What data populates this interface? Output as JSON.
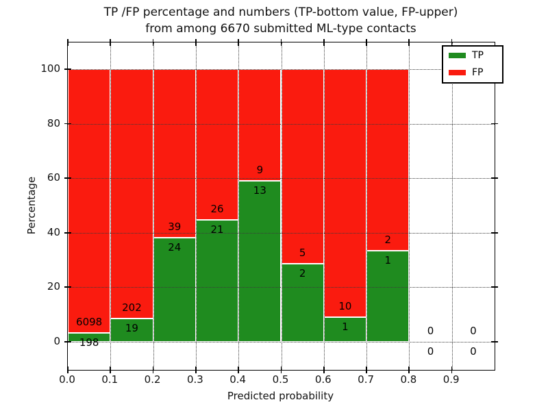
{
  "figure": {
    "title_line1": "TP /FP percentage and numbers (TP-bottom value, FP-upper)",
    "title_line2": "from among 6670 submitted ML-type contacts",
    "xlabel": "Predicted probability",
    "ylabel": "Percentage"
  },
  "legend": {
    "items": [
      {
        "label": "TP",
        "color": "#1f8b1f"
      },
      {
        "label": "FP",
        "color": "#fa1b0f"
      }
    ]
  },
  "colors": {
    "tp_green": "#1f8b1f",
    "fp_red": "#fa1b0f",
    "bar_edge": "#ffffff",
    "grid": "#3a3a3a",
    "axis": "#000000"
  },
  "chart_data": {
    "type": "bar",
    "stacked": true,
    "orientation": "vertical",
    "title": "TP /FP percentage and numbers (TP-bottom value, FP-upper) from among 6670 submitted ML-type contacts",
    "xlabel": "Predicted probability",
    "ylabel": "Percentage",
    "xlim": [
      0.0,
      1.0
    ],
    "ylim": [
      -10,
      110
    ],
    "grid": "dotted",
    "legend_position": "upper right",
    "x_bin_edges": [
      0.0,
      0.1,
      0.2,
      0.3,
      0.4,
      0.5,
      0.6,
      0.7,
      0.8,
      0.9,
      1.0
    ],
    "x_tick_labels": [
      "0.0",
      "0.1",
      "0.2",
      "0.3",
      "0.4",
      "0.5",
      "0.6",
      "0.7",
      "0.8",
      "0.9"
    ],
    "y_tick_values": [
      0,
      20,
      40,
      60,
      80,
      100
    ],
    "y_tick_labels": [
      "0",
      "20",
      "40",
      "60",
      "80",
      "100"
    ],
    "series": [
      {
        "name": "TP",
        "color": "#1f8b1f",
        "counts": [
          198,
          19,
          24,
          21,
          13,
          2,
          1,
          1,
          0,
          0
        ]
      },
      {
        "name": "FP",
        "color": "#fa1b0f",
        "counts": [
          6098,
          202,
          39,
          26,
          9,
          5,
          10,
          2,
          0,
          0
        ]
      }
    ],
    "tp_percent_of_bin": [
      3.1,
      8.6,
      38.1,
      44.7,
      59.1,
      28.6,
      9.1,
      33.3,
      0,
      0
    ],
    "fp_percent_of_bin": [
      96.9,
      91.4,
      61.9,
      55.3,
      40.9,
      71.4,
      90.9,
      66.7,
      0,
      0
    ],
    "total_contacts": 6670,
    "annotation_rule": "FP count printed above the TP/FP boundary, TP count printed below it; empty bins show 0 / 0 around the zero line"
  }
}
